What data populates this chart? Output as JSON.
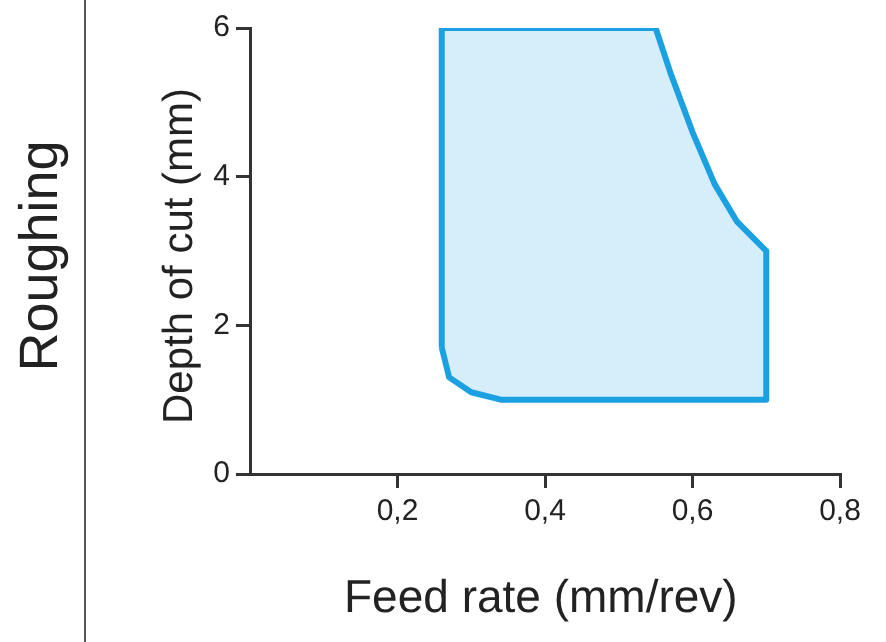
{
  "chart_data": {
    "type": "area",
    "xlabel": "Feed rate (mm/rev)",
    "ylabel": "Depth of cut (mm)",
    "annotations": [
      "Roughing"
    ],
    "series": [
      {
        "color": "#1ba1e2",
        "x": [
          0.26,
          0.26,
          0.55,
          0.57,
          0.6,
          0.63,
          0.66,
          0.7,
          0.7,
          0.34,
          0.3,
          0.27,
          0.26
        ],
        "values": [
          1.7,
          6,
          6,
          5.4,
          4.6,
          3.9,
          3.4,
          3,
          1,
          1,
          1.1,
          1.3,
          1.7
        ]
      }
    ],
    "xlim": [
      0,
      0.8
    ],
    "ylim": [
      0,
      6
    ],
    "xticks": [
      {
        "value": 0.2,
        "label": "0,2"
      },
      {
        "value": 0.4,
        "label": "0,4"
      },
      {
        "value": 0.6,
        "label": "0,6"
      },
      {
        "value": 0.8,
        "label": "0,8"
      }
    ],
    "yticks": [
      0,
      2,
      4,
      6
    ],
    "grid": false,
    "legend": false
  }
}
